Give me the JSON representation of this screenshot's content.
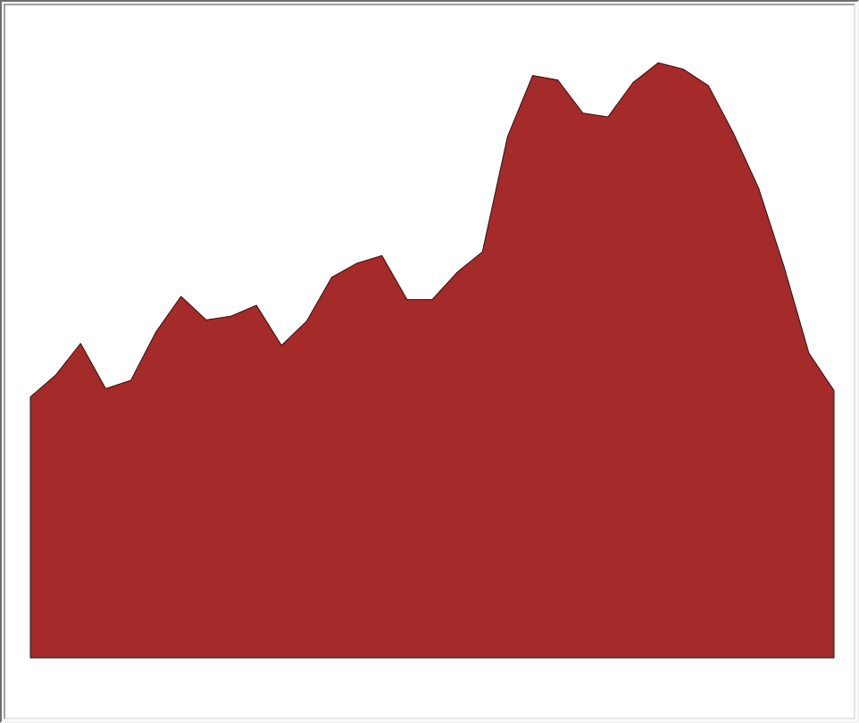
{
  "chart_data": {
    "type": "area",
    "title": "",
    "xlabel": "",
    "ylabel": "",
    "x": [
      0,
      1,
      2,
      3,
      4,
      5,
      6,
      7,
      8,
      9,
      10,
      11,
      12,
      13,
      14,
      15,
      16,
      17,
      18,
      19,
      20,
      21,
      22,
      23,
      24,
      25,
      26,
      27,
      28,
      29,
      30,
      31,
      32
    ],
    "series": [
      {
        "values": [
          41.0,
          44.4,
          49.4,
          42.3,
          43.6,
          51.2,
          56.8,
          53.1,
          53.7,
          55.4,
          49.1,
          52.9,
          59.8,
          62.0,
          63.2,
          56.3,
          56.3,
          60.6,
          63.8,
          81.9,
          91.5,
          90.8,
          85.6,
          85.0,
          90.4,
          93.5,
          92.5,
          89.9,
          82.4,
          73.8,
          61.6,
          47.9,
          42.0
        ],
        "color": "#a52a2a"
      }
    ],
    "ylim": [
      0,
      100
    ],
    "grid": false,
    "legend": "none",
    "colors": {
      "fill": "#a52a2a",
      "stroke": "#1a1a1a",
      "background": "#ffffff"
    }
  }
}
